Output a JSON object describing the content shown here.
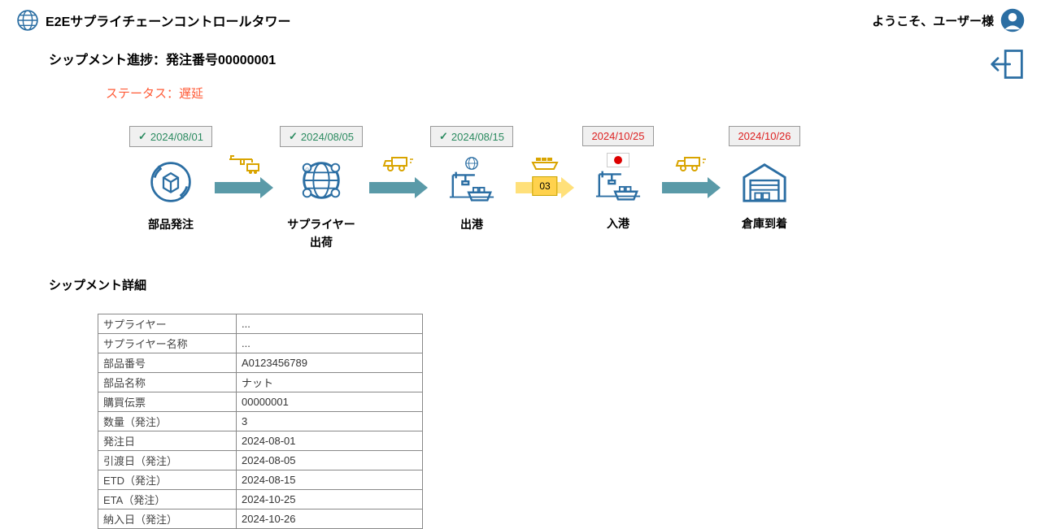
{
  "header": {
    "app_title": "E2Eサプライチェーンコントロールタワー",
    "welcome": "ようこそ、ユーザー様"
  },
  "progress": {
    "title_prefix": "シップメント進捗：発注番号",
    "po_number": "00000001",
    "status_label": "ステータス：",
    "status_value": "遅延",
    "status_color": "#ff5a36"
  },
  "flow": {
    "type": "flowchart",
    "icon_stroke": "#2b6ea3",
    "arrow_complete_color": "#5a9aa8",
    "arrow_pending_color": "#ffe07a",
    "badge_bg": "#ffd24d",
    "badge_border": "#c9a400",
    "steps": [
      {
        "label": "部品発注",
        "date": "2024/08/01",
        "state": "complete"
      },
      {
        "label": "サプライヤー\n出荷",
        "date": "2024/08/05",
        "state": "complete"
      },
      {
        "label": "出港",
        "date": "2024/08/15",
        "state": "complete"
      },
      {
        "label": "入港",
        "date": "2024/10/25",
        "state": "pending",
        "flag": "jp"
      },
      {
        "label": "倉庫到着",
        "date": "2024/10/26",
        "state": "pending"
      }
    ],
    "transit_badge": "03"
  },
  "detail": {
    "title": "シップメント詳細",
    "rows": [
      {
        "k": "サプライヤー",
        "v": "..."
      },
      {
        "k": "サプライヤー名称",
        "v": "..."
      },
      {
        "k": "部品番号",
        "v": "A0123456789"
      },
      {
        "k": "部品名称",
        "v": "ナット"
      },
      {
        "k": "購買伝票",
        "v": "00000001"
      },
      {
        "k": "数量（発注）",
        "v": "3"
      },
      {
        "k": "発注日",
        "v": "2024-08-01"
      },
      {
        "k": "引渡日（発注）",
        "v": "2024-08-05"
      },
      {
        "k": "ETD（発注）",
        "v": "2024-08-15"
      },
      {
        "k": "ETA（発注）",
        "v": "2024-10-25"
      },
      {
        "k": "納入日（発注）",
        "v": "2024-10-26"
      }
    ]
  }
}
